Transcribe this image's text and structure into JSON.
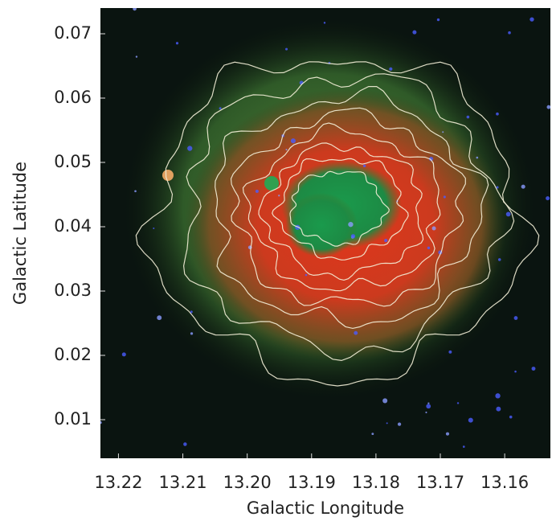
{
  "chart_data": {
    "type": "image",
    "x_label": "Galactic Longitude",
    "y_label": "Galactic Latitude",
    "xlim": [
      13.2228,
      13.1529
    ],
    "ylim": [
      0.004,
      0.074
    ],
    "xticks": [
      13.22,
      13.21,
      {
        "value": 13.2,
        "label": "13.20"
      },
      13.19,
      13.18,
      13.17,
      13.16
    ],
    "yticks": [
      0.07,
      0.06,
      0.05,
      0.04,
      0.03,
      0.02,
      0.01
    ]
  }
}
